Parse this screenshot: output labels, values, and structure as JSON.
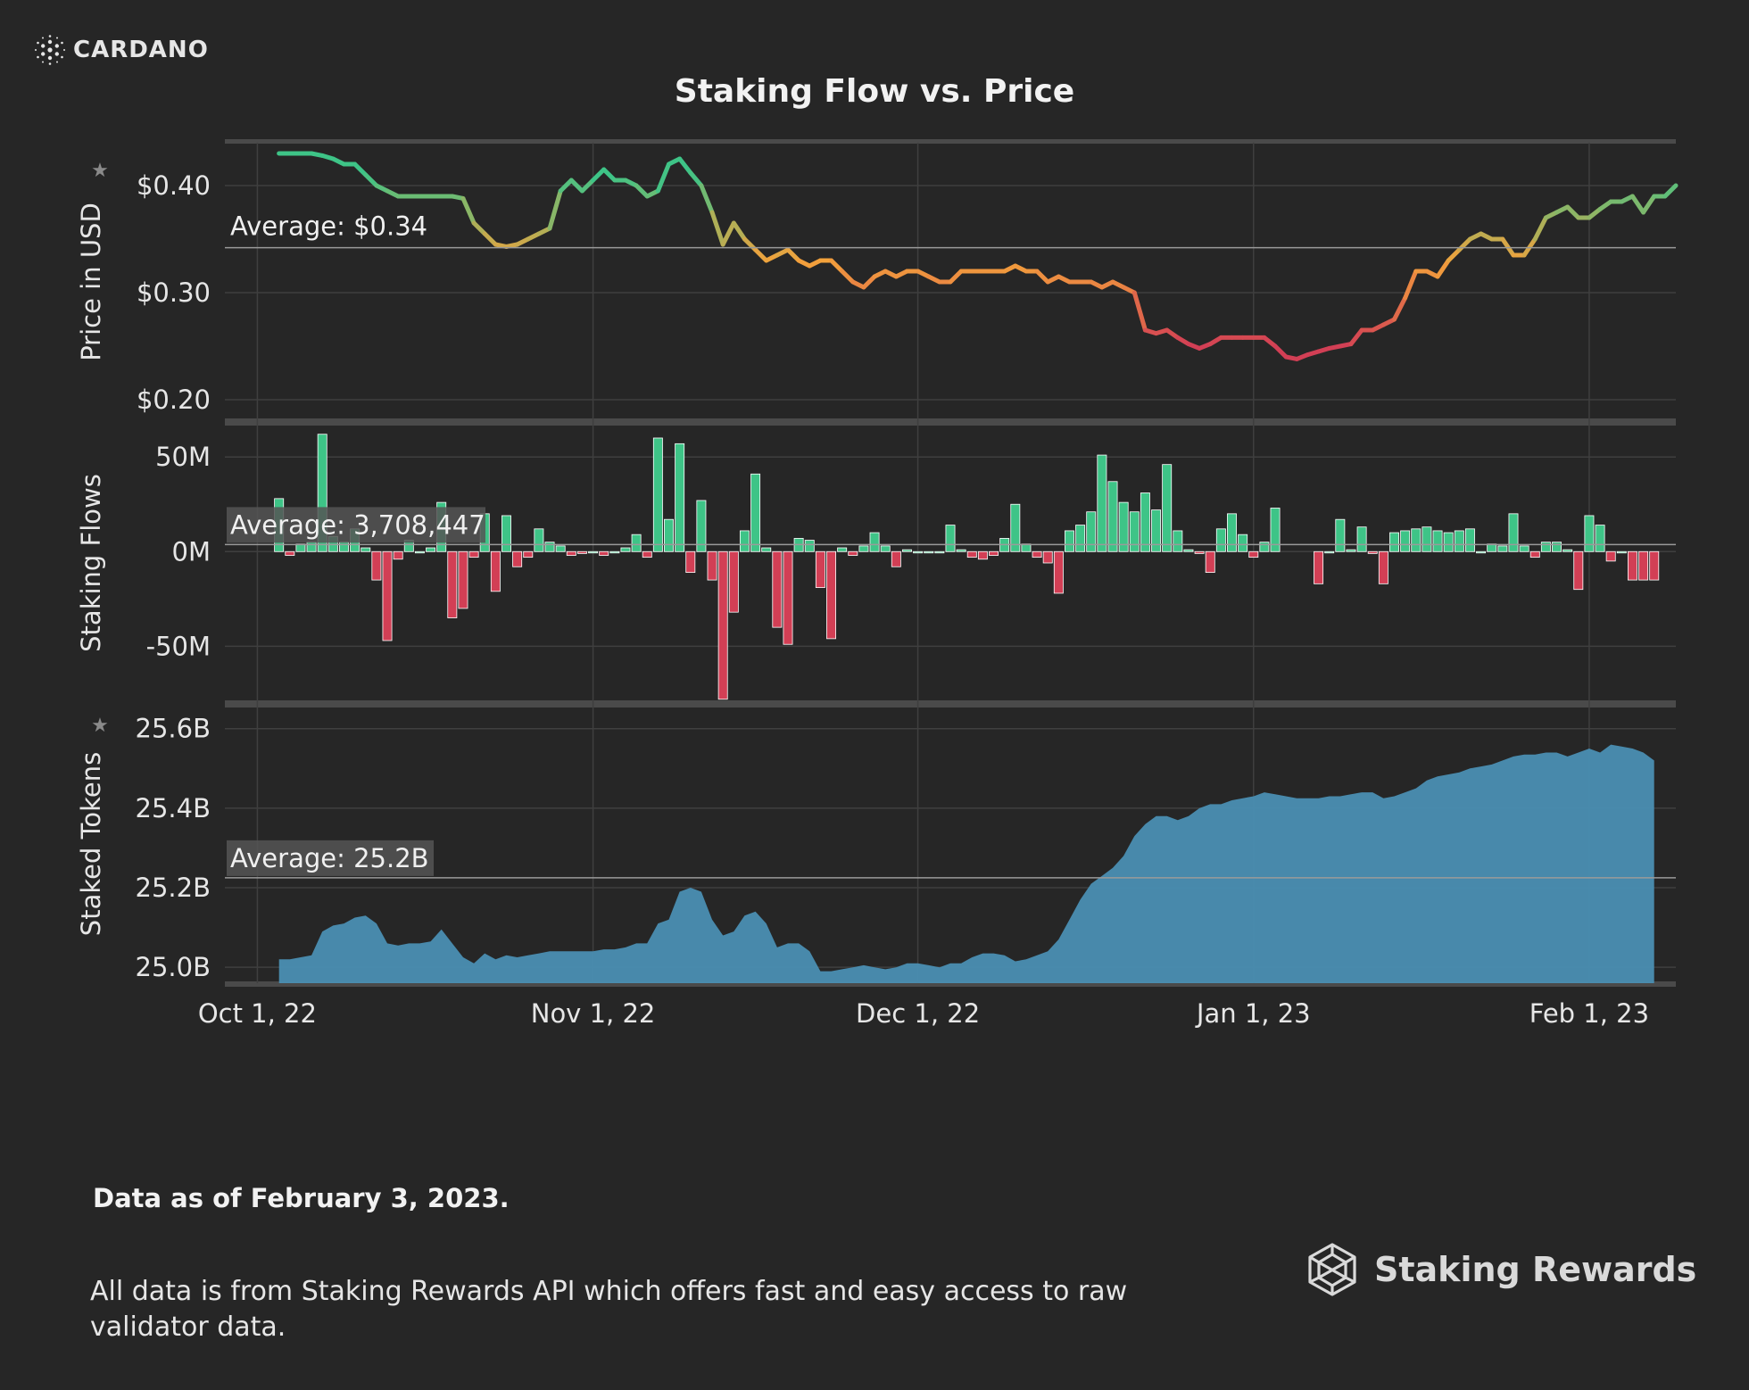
{
  "brand": {
    "name": "CARDANO",
    "icon": "cardano-icon"
  },
  "title": "Staking Flow vs. Price",
  "footer": {
    "data_as_of": "Data as of February 3, 2023.",
    "source": "All data is from Staking Rewards API which offers fast and easy access to raw validator data.",
    "logo_text": "Staking Rewards",
    "logo_icon": "staking-rewards-icon"
  },
  "colors": {
    "background": "#262626",
    "grid": "#3f3f3f",
    "divider": "#4a4a4a",
    "positive": "#3ec487",
    "negative": "#d23f55",
    "area": "#4a8eb2",
    "price_high": "#3ec487",
    "price_mid": "#f3a23b",
    "price_low": "#d23f55"
  },
  "chart_data": {
    "type": "line",
    "x_axis": {
      "start": "2022-09-28",
      "end": "2023-02-09",
      "tick_labels": [
        "Oct 1, 22",
        "Nov 1, 22",
        "Dec 1, 22",
        "Jan 1, 23",
        "Feb 1, 23"
      ],
      "tick_dates": [
        "2022-10-01",
        "2022-11-01",
        "2022-12-01",
        "2023-01-01",
        "2023-02-01"
      ]
    },
    "panels": [
      {
        "name": "price",
        "type": "line",
        "ylabel": "Price in USD",
        "ylim": [
          0.18,
          0.44
        ],
        "yticks": [
          0.4,
          0.3,
          0.2
        ],
        "ytick_labels": [
          "$0.40",
          "$0.30",
          "$0.20"
        ],
        "average": 0.342,
        "average_label": "Average: $0.34",
        "start_date": "2022-10-03",
        "values": [
          0.43,
          0.43,
          0.43,
          0.43,
          0.428,
          0.425,
          0.42,
          0.42,
          0.41,
          0.4,
          0.395,
          0.39,
          0.39,
          0.39,
          0.39,
          0.39,
          0.39,
          0.388,
          0.365,
          0.355,
          0.345,
          0.343,
          0.345,
          0.35,
          0.355,
          0.36,
          0.395,
          0.405,
          0.395,
          0.405,
          0.415,
          0.405,
          0.405,
          0.4,
          0.39,
          0.395,
          0.42,
          0.425,
          0.412,
          0.4,
          0.375,
          0.345,
          0.365,
          0.35,
          0.34,
          0.33,
          0.335,
          0.34,
          0.33,
          0.325,
          0.33,
          0.33,
          0.32,
          0.31,
          0.305,
          0.315,
          0.32,
          0.315,
          0.32,
          0.32,
          0.315,
          0.31,
          0.31,
          0.32,
          0.32,
          0.32,
          0.32,
          0.32,
          0.325,
          0.32,
          0.32,
          0.31,
          0.315,
          0.31,
          0.31,
          0.31,
          0.305,
          0.31,
          0.305,
          0.3,
          0.265,
          0.262,
          0.265,
          0.258,
          0.252,
          0.248,
          0.252,
          0.258,
          0.258,
          0.258,
          0.258,
          0.258,
          0.25,
          0.24,
          0.238,
          0.242,
          0.245,
          0.248,
          0.25,
          0.252,
          0.265,
          0.265,
          0.27,
          0.275,
          0.295,
          0.32,
          0.32,
          0.315,
          0.33,
          0.34,
          0.35,
          0.355,
          0.35,
          0.35,
          0.335,
          0.335,
          0.35,
          0.37,
          0.375,
          0.38,
          0.37,
          0.37,
          0.378,
          0.385,
          0.385,
          0.39,
          0.375,
          0.39,
          0.39,
          0.4
        ]
      },
      {
        "name": "staking_flows",
        "type": "bar",
        "ylabel": "Staking Flows",
        "ylim": [
          -80000000,
          68000000
        ],
        "yticks": [
          50000000,
          0,
          -50000000
        ],
        "ytick_labels": [
          "50M",
          "0M",
          "-50M"
        ],
        "average": 3708447,
        "average_label": "Average: 3,708,447",
        "start_date": "2022-10-03",
        "values_millions": [
          28,
          -2,
          4,
          5,
          62,
          8,
          5,
          12,
          2,
          -15,
          -47,
          -4,
          6,
          0,
          2,
          26,
          -35,
          -30,
          -3,
          20,
          -21,
          19,
          -8,
          -3,
          12,
          5,
          3,
          -2,
          -1,
          0,
          -2,
          0,
          2,
          9,
          -3,
          60,
          17,
          57,
          -11,
          27,
          -15,
          -78,
          -32,
          11,
          41,
          2,
          -40,
          -49,
          7,
          6,
          -19,
          -46,
          2,
          -2,
          3,
          10,
          3,
          -8,
          1,
          0,
          0,
          0,
          14,
          1,
          -3,
          -4,
          -2,
          7,
          25,
          4,
          -3,
          -6,
          -22,
          11,
          14,
          21,
          51,
          37,
          26,
          21,
          31,
          22,
          46,
          11,
          1,
          -1,
          -11,
          12,
          20,
          9,
          -3,
          5,
          23,
          null,
          null,
          null,
          -17,
          0,
          17,
          1,
          13,
          -1,
          -17,
          10,
          11,
          12,
          13,
          11,
          10,
          11,
          12,
          0,
          4,
          3,
          20,
          3,
          -3,
          5,
          5,
          1,
          -20,
          19,
          14,
          -5,
          0,
          -15,
          -15,
          -15
        ]
      },
      {
        "name": "staked_tokens",
        "type": "area",
        "ylabel": "Staked Tokens",
        "ylim": [
          24.96,
          25.66
        ],
        "yticks": [
          25.6,
          25.4,
          25.2,
          25.0
        ],
        "ytick_labels": [
          "25.6B",
          "25.4B",
          "25.2B",
          "25.0B"
        ],
        "unit": "B",
        "average": 25.225,
        "average_label": "Average: 25.2B",
        "start_date": "2022-10-03",
        "values_billions": [
          25.02,
          25.02,
          25.025,
          25.03,
          25.09,
          25.105,
          25.11,
          25.125,
          25.13,
          25.11,
          25.06,
          25.055,
          25.06,
          25.06,
          25.065,
          25.095,
          25.06,
          25.025,
          25.01,
          25.035,
          25.02,
          25.03,
          25.025,
          25.03,
          25.035,
          25.04,
          25.04,
          25.04,
          25.04,
          25.04,
          25.045,
          25.045,
          25.05,
          25.06,
          25.06,
          25.11,
          25.12,
          25.19,
          25.2,
          25.19,
          25.12,
          25.08,
          25.09,
          25.13,
          25.14,
          25.11,
          25.05,
          25.06,
          25.06,
          25.04,
          24.99,
          24.99,
          24.995,
          25.0,
          25.005,
          25.0,
          24.995,
          25.0,
          25.01,
          25.01,
          25.005,
          25.0,
          25.01,
          25.01,
          25.025,
          25.035,
          25.035,
          25.03,
          25.015,
          25.02,
          25.03,
          25.04,
          25.07,
          25.12,
          25.17,
          25.21,
          25.23,
          25.25,
          25.28,
          25.33,
          25.36,
          25.38,
          25.38,
          25.37,
          25.38,
          25.4,
          25.41,
          25.41,
          25.42,
          25.425,
          25.43,
          25.44,
          25.435,
          25.43,
          25.425,
          25.425,
          25.425,
          25.43,
          25.43,
          25.435,
          25.44,
          25.44,
          25.425,
          25.43,
          25.44,
          25.45,
          25.47,
          25.48,
          25.485,
          25.49,
          25.5,
          25.505,
          25.51,
          25.52,
          25.53,
          25.535,
          25.535,
          25.54,
          25.54,
          25.53,
          25.54,
          25.55,
          25.54,
          25.56,
          25.555,
          25.55,
          25.54,
          25.52
        ]
      }
    ]
  }
}
